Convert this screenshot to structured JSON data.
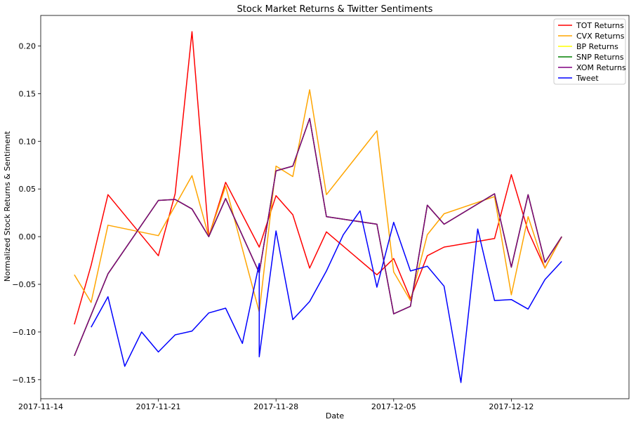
{
  "chart_data": {
    "type": "line",
    "title": "Stock Market Returns & Twitter Sentiments",
    "xlabel": "Date",
    "ylabel": "Normalized Stock Returns & Sentiment",
    "xlim": [
      "2017-11-14",
      "2017-12-19"
    ],
    "ylim": [
      -0.17,
      0.232
    ],
    "x_ticks": [
      "2017-11-14",
      "2017-11-21",
      "2017-11-28",
      "2017-12-05",
      "2017-12-12"
    ],
    "y_ticks": [
      -0.15,
      -0.1,
      -0.05,
      0.0,
      0.05,
      0.1,
      0.15,
      0.2
    ],
    "y_tick_labels": [
      "−0.15",
      "−0.10",
      "−0.05",
      "0.00",
      "0.05",
      "0.10",
      "0.15",
      "0.20"
    ],
    "legend_position": "top-right",
    "grid": false,
    "series": [
      {
        "name": "TOT Returns",
        "color": "#ff0000",
        "points": [
          [
            "2017-11-16",
            -0.092
          ],
          [
            "2017-11-17",
            -0.03
          ],
          [
            "2017-11-18",
            0.044
          ],
          [
            "2017-11-21",
            -0.02
          ],
          [
            "2017-11-22",
            0.045
          ],
          [
            "2017-11-23",
            0.215
          ],
          [
            "2017-11-24",
            0.0
          ],
          [
            "2017-11-25",
            0.057
          ],
          [
            "2017-11-27",
            -0.011
          ],
          [
            "2017-11-28",
            0.043
          ],
          [
            "2017-11-29",
            0.023
          ],
          [
            "2017-11-30",
            -0.033
          ],
          [
            "2017-12-01",
            0.005
          ],
          [
            "2017-12-04",
            -0.04
          ],
          [
            "2017-12-05",
            -0.023
          ],
          [
            "2017-12-06",
            -0.065
          ],
          [
            "2017-12-07",
            -0.02
          ],
          [
            "2017-12-08",
            -0.011
          ],
          [
            "2017-12-11",
            -0.002
          ],
          [
            "2017-12-12",
            0.065
          ],
          [
            "2017-12-13",
            0.006
          ],
          [
            "2017-12-14",
            -0.033
          ],
          [
            "2017-12-15",
            0.0
          ]
        ]
      },
      {
        "name": "CVX Returns",
        "color": "#ffa500",
        "points": [
          [
            "2017-11-16",
            -0.04
          ],
          [
            "2017-11-17",
            -0.069
          ],
          [
            "2017-11-18",
            0.012
          ],
          [
            "2017-11-21",
            0.001
          ],
          [
            "2017-11-23",
            0.064
          ],
          [
            "2017-11-24",
            0.0
          ],
          [
            "2017-11-25",
            0.053
          ],
          [
            "2017-11-27",
            -0.079
          ],
          [
            "2017-11-28",
            0.074
          ],
          [
            "2017-11-29",
            0.063
          ],
          [
            "2017-11-30",
            0.154
          ],
          [
            "2017-12-01",
            0.044
          ],
          [
            "2017-12-04",
            0.111
          ],
          [
            "2017-12-05",
            -0.037
          ],
          [
            "2017-12-06",
            -0.067
          ],
          [
            "2017-12-07",
            0.002
          ],
          [
            "2017-12-08",
            0.024
          ],
          [
            "2017-12-11",
            0.042
          ],
          [
            "2017-12-12",
            -0.061
          ],
          [
            "2017-12-13",
            0.021
          ],
          [
            "2017-12-14",
            -0.033
          ],
          [
            "2017-12-15",
            0.0
          ]
        ]
      },
      {
        "name": "BP Returns",
        "color": "#ffff00",
        "points": [
          [
            "2017-11-16",
            -0.125
          ],
          [
            "2017-11-18",
            -0.039
          ],
          [
            "2017-11-21",
            0.038
          ],
          [
            "2017-11-22",
            0.039
          ],
          [
            "2017-11-23",
            0.029
          ],
          [
            "2017-11-24",
            0.0
          ],
          [
            "2017-11-25",
            0.04
          ],
          [
            "2017-11-27",
            -0.038
          ],
          [
            "2017-11-28",
            0.069
          ],
          [
            "2017-11-29",
            0.074
          ],
          [
            "2017-11-30",
            0.124
          ],
          [
            "2017-12-01",
            0.021
          ],
          [
            "2017-12-04",
            0.013
          ],
          [
            "2017-12-05",
            -0.081
          ],
          [
            "2017-12-06",
            -0.073
          ],
          [
            "2017-12-07",
            0.033
          ],
          [
            "2017-12-08",
            0.013
          ],
          [
            "2017-12-11",
            0.045
          ],
          [
            "2017-12-12",
            -0.032
          ],
          [
            "2017-12-13",
            0.044
          ],
          [
            "2017-12-14",
            -0.027
          ],
          [
            "2017-12-15",
            0.0
          ]
        ]
      },
      {
        "name": "SNP Returns",
        "color": "#008000",
        "points": [
          [
            "2017-11-16",
            -0.125
          ],
          [
            "2017-11-18",
            -0.039
          ],
          [
            "2017-11-21",
            0.038
          ],
          [
            "2017-11-22",
            0.039
          ],
          [
            "2017-11-23",
            0.029
          ],
          [
            "2017-11-24",
            0.0
          ],
          [
            "2017-11-25",
            0.04
          ],
          [
            "2017-11-27",
            -0.038
          ],
          [
            "2017-11-28",
            0.069
          ],
          [
            "2017-11-29",
            0.074
          ],
          [
            "2017-11-30",
            0.124
          ],
          [
            "2017-12-01",
            0.021
          ],
          [
            "2017-12-04",
            0.013
          ],
          [
            "2017-12-05",
            -0.081
          ],
          [
            "2017-12-06",
            -0.073
          ],
          [
            "2017-12-07",
            0.033
          ],
          [
            "2017-12-08",
            0.013
          ],
          [
            "2017-12-11",
            0.045
          ],
          [
            "2017-12-12",
            -0.032
          ],
          [
            "2017-12-13",
            0.044
          ],
          [
            "2017-12-14",
            -0.027
          ],
          [
            "2017-12-15",
            0.0
          ]
        ]
      },
      {
        "name": "XOM Returns",
        "color": "#800080",
        "points": [
          [
            "2017-11-16",
            -0.125
          ],
          [
            "2017-11-18",
            -0.039
          ],
          [
            "2017-11-21",
            0.038
          ],
          [
            "2017-11-22",
            0.039
          ],
          [
            "2017-11-23",
            0.029
          ],
          [
            "2017-11-24",
            0.0
          ],
          [
            "2017-11-25",
            0.04
          ],
          [
            "2017-11-27",
            -0.038
          ],
          [
            "2017-11-28",
            0.069
          ],
          [
            "2017-11-29",
            0.074
          ],
          [
            "2017-11-30",
            0.124
          ],
          [
            "2017-12-01",
            0.021
          ],
          [
            "2017-12-04",
            0.013
          ],
          [
            "2017-12-05",
            -0.081
          ],
          [
            "2017-12-06",
            -0.073
          ],
          [
            "2017-12-07",
            0.033
          ],
          [
            "2017-12-08",
            0.013
          ],
          [
            "2017-12-11",
            0.045
          ],
          [
            "2017-12-12",
            -0.032
          ],
          [
            "2017-12-13",
            0.044
          ],
          [
            "2017-12-14",
            -0.027
          ],
          [
            "2017-12-15",
            0.0
          ]
        ]
      },
      {
        "name": "Tweet",
        "color": "#0000ff",
        "points": [
          [
            "2017-11-17",
            -0.095
          ],
          [
            "2017-11-18",
            -0.063
          ],
          [
            "2017-11-19",
            -0.136
          ],
          [
            "2017-11-20",
            -0.1
          ],
          [
            "2017-11-21",
            -0.121
          ],
          [
            "2017-11-22",
            -0.103
          ],
          [
            "2017-11-23",
            -0.099
          ],
          [
            "2017-11-24",
            -0.08
          ],
          [
            "2017-11-25",
            -0.075
          ],
          [
            "2017-11-26",
            -0.112
          ],
          [
            "2017-11-27",
            -0.028
          ],
          [
            "2017-11-27",
            -0.126
          ],
          [
            "2017-11-28",
            0.006
          ],
          [
            "2017-11-29",
            -0.087
          ],
          [
            "2017-11-30",
            -0.068
          ],
          [
            "2017-12-01",
            -0.036
          ],
          [
            "2017-12-02",
            0.002
          ],
          [
            "2017-12-03",
            0.027
          ],
          [
            "2017-12-04",
            -0.053
          ],
          [
            "2017-12-05",
            0.015
          ],
          [
            "2017-12-06",
            -0.036
          ],
          [
            "2017-12-07",
            -0.031
          ],
          [
            "2017-12-08",
            -0.052
          ],
          [
            "2017-12-09",
            -0.153
          ],
          [
            "2017-12-10",
            0.008
          ],
          [
            "2017-12-11",
            -0.067
          ],
          [
            "2017-12-12",
            -0.066
          ],
          [
            "2017-12-13",
            -0.076
          ],
          [
            "2017-12-14",
            -0.045
          ],
          [
            "2017-12-15",
            -0.026
          ]
        ]
      }
    ]
  }
}
